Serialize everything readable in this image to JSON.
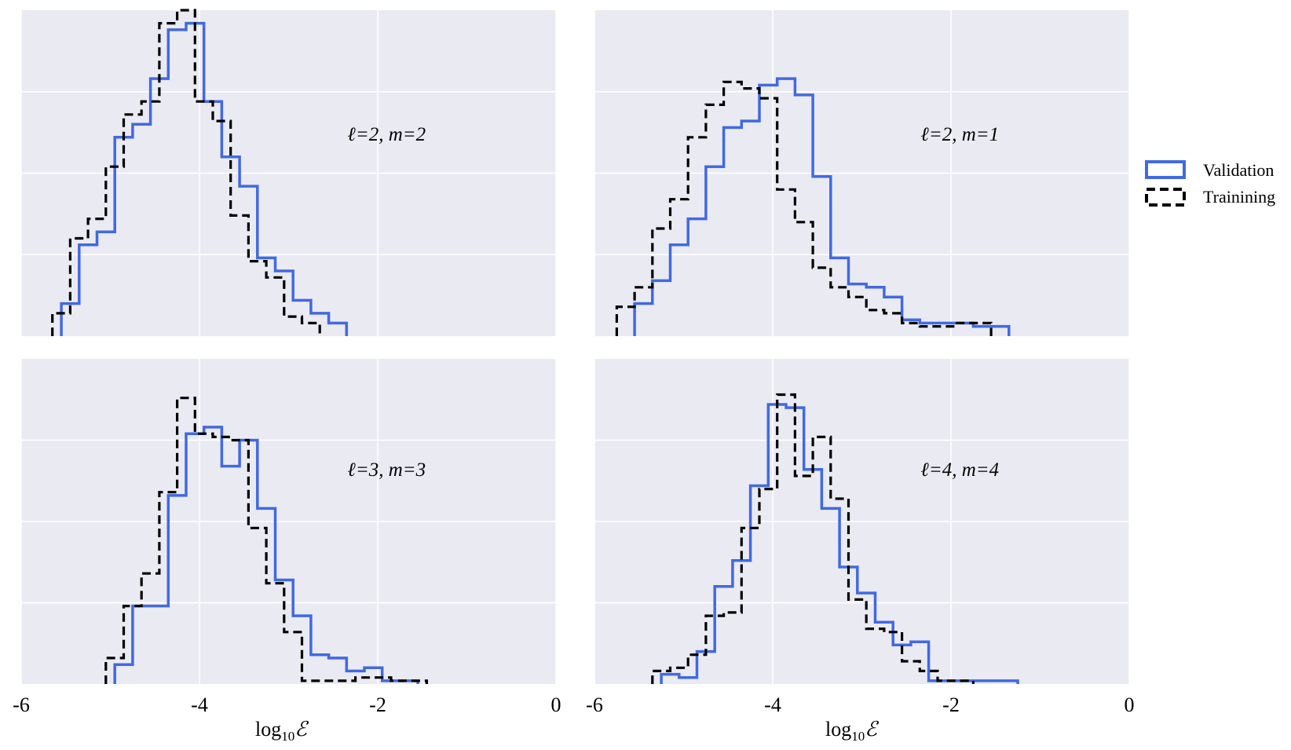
{
  "chart_data": {
    "type": "histogram-grid",
    "colors": {
      "validation": "#4169e1",
      "training": "#000000",
      "panel_bg": "#eaeaf2",
      "grid": "#ffffff"
    },
    "legend": {
      "placement": "right",
      "entries": [
        {
          "label": "Validation",
          "style": "solid",
          "color": "#4169e1"
        },
        {
          "label": "Trainining",
          "style": "dashed",
          "color": "#000000"
        }
      ]
    },
    "xlabel_main": "log",
    "xlabel_sub": "10",
    "xlabel_sym": "ℰ",
    "xlim": [
      -6,
      0
    ],
    "xticks": [
      -6,
      -4,
      -2,
      0
    ],
    "xtick_labels": [
      "-6",
      "-4",
      "-2",
      "0"
    ],
    "ylim": [
      0,
      1
    ],
    "ygrid": [
      0.25,
      0.5,
      0.75
    ],
    "panels": [
      {
        "label": "ℓ=2, m=2",
        "series": [
          {
            "name": "Validation",
            "edges": [
              -5.55,
              -5.35,
              -5.15,
              -4.95,
              -4.75,
              -4.55,
              -4.35,
              -4.15,
              -3.95,
              -3.75,
              -3.55,
              -3.35,
              -3.15,
              -2.95,
              -2.75,
              -2.55,
              -2.35
            ],
            "counts": [
              0.1,
              0.28,
              0.32,
              0.61,
              0.65,
              0.79,
              0.94,
              0.96,
              0.72,
              0.55,
              0.46,
              0.24,
              0.2,
              0.11,
              0.07,
              0.04
            ]
          },
          {
            "name": "Trainining",
            "edges": [
              -5.65,
              -5.45,
              -5.25,
              -5.05,
              -4.85,
              -4.65,
              -4.45,
              -4.25,
              -4.05,
              -3.85,
              -3.65,
              -3.45,
              -3.25,
              -3.05,
              -2.85,
              -2.65
            ],
            "counts": [
              0.07,
              0.3,
              0.36,
              0.52,
              0.68,
              0.72,
              0.96,
              1.0,
              0.72,
              0.66,
              0.37,
              0.23,
              0.18,
              0.06,
              0.04
            ]
          }
        ]
      },
      {
        "label": "ℓ=2, m=1",
        "series": [
          {
            "name": "Validation",
            "edges": [
              -5.55,
              -5.35,
              -5.15,
              -4.95,
              -4.75,
              -4.55,
              -4.35,
              -4.15,
              -3.95,
              -3.75,
              -3.55,
              -3.35,
              -3.15,
              -2.95,
              -2.75,
              -2.55,
              -2.35,
              -2.15,
              -1.95,
              -1.75,
              -1.55,
              -1.35
            ],
            "counts": [
              0.1,
              0.17,
              0.28,
              0.36,
              0.52,
              0.64,
              0.66,
              0.77,
              0.79,
              0.74,
              0.49,
              0.24,
              0.16,
              0.15,
              0.12,
              0.05,
              0.04,
              0.04,
              0.04,
              0.03,
              0.03
            ]
          },
          {
            "name": "Trainining",
            "edges": [
              -5.75,
              -5.55,
              -5.35,
              -5.15,
              -4.95,
              -4.75,
              -4.55,
              -4.35,
              -4.15,
              -3.95,
              -3.75,
              -3.55,
              -3.35,
              -3.15,
              -2.95,
              -2.75,
              -2.55,
              -2.35,
              -2.15,
              -1.95,
              -1.75,
              -1.55
            ],
            "counts": [
              0.09,
              0.15,
              0.33,
              0.42,
              0.61,
              0.71,
              0.78,
              0.76,
              0.73,
              0.45,
              0.35,
              0.21,
              0.15,
              0.12,
              0.08,
              0.07,
              0.04,
              0.03,
              0.03,
              0.04,
              0.04
            ]
          }
        ]
      },
      {
        "label": "ℓ=3, m=3",
        "series": [
          {
            "name": "Validation",
            "edges": [
              -4.95,
              -4.75,
              -4.55,
              -4.35,
              -4.15,
              -3.95,
              -3.75,
              -3.55,
              -3.35,
              -3.15,
              -2.95,
              -2.75,
              -2.55,
              -2.35,
              -2.15,
              -1.95,
              -1.75,
              -1.55
            ],
            "counts": [
              0.06,
              0.24,
              0.24,
              0.58,
              0.77,
              0.79,
              0.67,
              0.75,
              0.54,
              0.32,
              0.21,
              0.09,
              0.08,
              0.04,
              0.05,
              0.01,
              0.01
            ]
          },
          {
            "name": "Trainining",
            "edges": [
              -5.05,
              -4.85,
              -4.65,
              -4.45,
              -4.25,
              -4.05,
              -3.85,
              -3.65,
              -3.45,
              -3.25,
              -3.05,
              -2.85,
              -2.65,
              -2.45,
              -2.25,
              -2.05,
              -1.85,
              -1.65,
              -1.45
            ],
            "counts": [
              0.08,
              0.24,
              0.34,
              0.59,
              0.88,
              0.77,
              0.76,
              0.75,
              0.48,
              0.31,
              0.16,
              0.01,
              0.01,
              0.01,
              0.02,
              0.02,
              0.01,
              0.01
            ]
          }
        ]
      },
      {
        "label": "ℓ=4, m=4",
        "series": [
          {
            "name": "Validation",
            "edges": [
              -5.25,
              -5.05,
              -4.85,
              -4.65,
              -4.45,
              -4.25,
              -4.05,
              -3.85,
              -3.65,
              -3.45,
              -3.25,
              -3.05,
              -2.85,
              -2.65,
              -2.45,
              -2.25,
              -2.05,
              -1.85,
              -1.65,
              -1.45,
              -1.25
            ],
            "counts": [
              0.03,
              0.02,
              0.1,
              0.3,
              0.38,
              0.61,
              0.86,
              0.85,
              0.66,
              0.54,
              0.36,
              0.28,
              0.19,
              0.12,
              0.13,
              0.01,
              0.01,
              0.01,
              0.01,
              0.01
            ]
          },
          {
            "name": "Trainining",
            "edges": [
              -5.35,
              -5.15,
              -4.95,
              -4.75,
              -4.55,
              -4.35,
              -4.15,
              -3.95,
              -3.75,
              -3.55,
              -3.35,
              -3.15,
              -2.95,
              -2.75,
              -2.55,
              -2.35,
              -2.15,
              -1.95,
              -1.75
            ],
            "counts": [
              0.04,
              0.05,
              0.09,
              0.21,
              0.22,
              0.48,
              0.6,
              0.89,
              0.64,
              0.76,
              0.57,
              0.26,
              0.17,
              0.16,
              0.07,
              0.04,
              0.01,
              0.01
            ]
          }
        ]
      }
    ]
  }
}
